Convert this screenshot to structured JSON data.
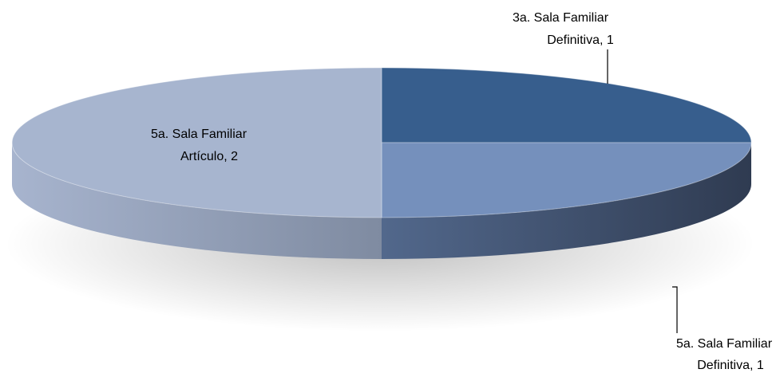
{
  "chart_data": {
    "type": "pie",
    "style": "3d",
    "legend": "none",
    "slices": [
      {
        "line1": "3a. Sala Familiar",
        "line2": "Definitiva, 1",
        "category": "3a. Sala Familiar Definitiva",
        "value": 1,
        "color": "#375E8D"
      },
      {
        "line1": "5a. Sala Familiar",
        "line2": "Definitiva, 1",
        "category": "5a. Sala Familiar Definitiva",
        "value": 1,
        "color": "#7590BC"
      },
      {
        "line1": "5a. Sala Familiar",
        "line2": "Artículo, 2",
        "category": "5a. Sala Familiar Artículo",
        "value": 2,
        "color": "#A7B5CF"
      }
    ],
    "side_colors": {
      "front_light_start": "#52688C",
      "front_light_end": "#2F3B51",
      "front_pale_start": "#A7B4CE",
      "front_pale_end": "#7F8BA1"
    }
  }
}
